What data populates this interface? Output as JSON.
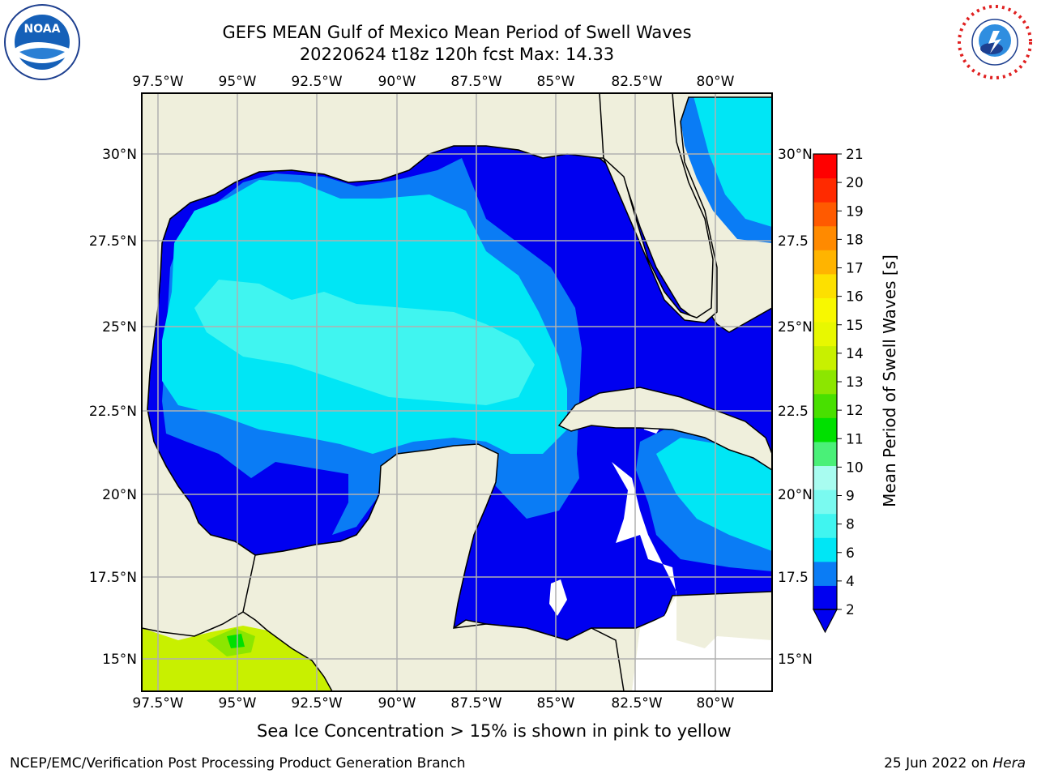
{
  "header": {
    "title_line1": "GEFS MEAN Gulf of Mexico Mean Period of Swell Waves",
    "title_line2": "20220624 t18z 120h fcst   Max: 14.33"
  },
  "map": {
    "lon_labels": [
      "97.5°W",
      "95°W",
      "92.5°W",
      "90°W",
      "87.5°W",
      "85°W",
      "82.5°W",
      "80°W"
    ],
    "lat_labels_left": [
      "30°N",
      "27.5°N",
      "25°N",
      "22.5°N",
      "20°N",
      "17.5°N",
      "15°N"
    ],
    "lat_labels_right": [
      "30°N",
      "27.5",
      "25°N",
      "22.5",
      "20°N",
      "17.5",
      "15°N"
    ],
    "land_color": "#efefdc",
    "ocean_nodata_color": "#ffffff",
    "grid_color": "#b0b0b0"
  },
  "colorbar": {
    "title": "Mean Period of Swell Waves [s]",
    "ticks": [
      "2",
      "4",
      "6",
      "8",
      "9",
      "10",
      "11",
      "12",
      "13",
      "14",
      "15",
      "16",
      "17",
      "18",
      "19",
      "20",
      "21"
    ],
    "colors": [
      "#0000f0",
      "#0a7cf5",
      "#00e6f5",
      "#40f5f0",
      "#7afaf0",
      "#a8fcf0",
      "#4af078",
      "#00e000",
      "#48e000",
      "#8ce600",
      "#c8f000",
      "#e8f800",
      "#f8f800",
      "#fde000",
      "#ffb400",
      "#ff8a00",
      "#ff5a00",
      "#ff2a00",
      "#ff0000"
    ]
  },
  "note": "Sea Ice Concentration > 15% is shown in pink to yellow",
  "footer": {
    "left": "NCEP/EMC/Verification Post Processing Product Generation Branch",
    "date": "25 Jun 2022 on ",
    "machine": "Hera"
  },
  "logos": {
    "left": "NOAA",
    "right_ring": "NATIONAL WEATHER SERVICE"
  }
}
